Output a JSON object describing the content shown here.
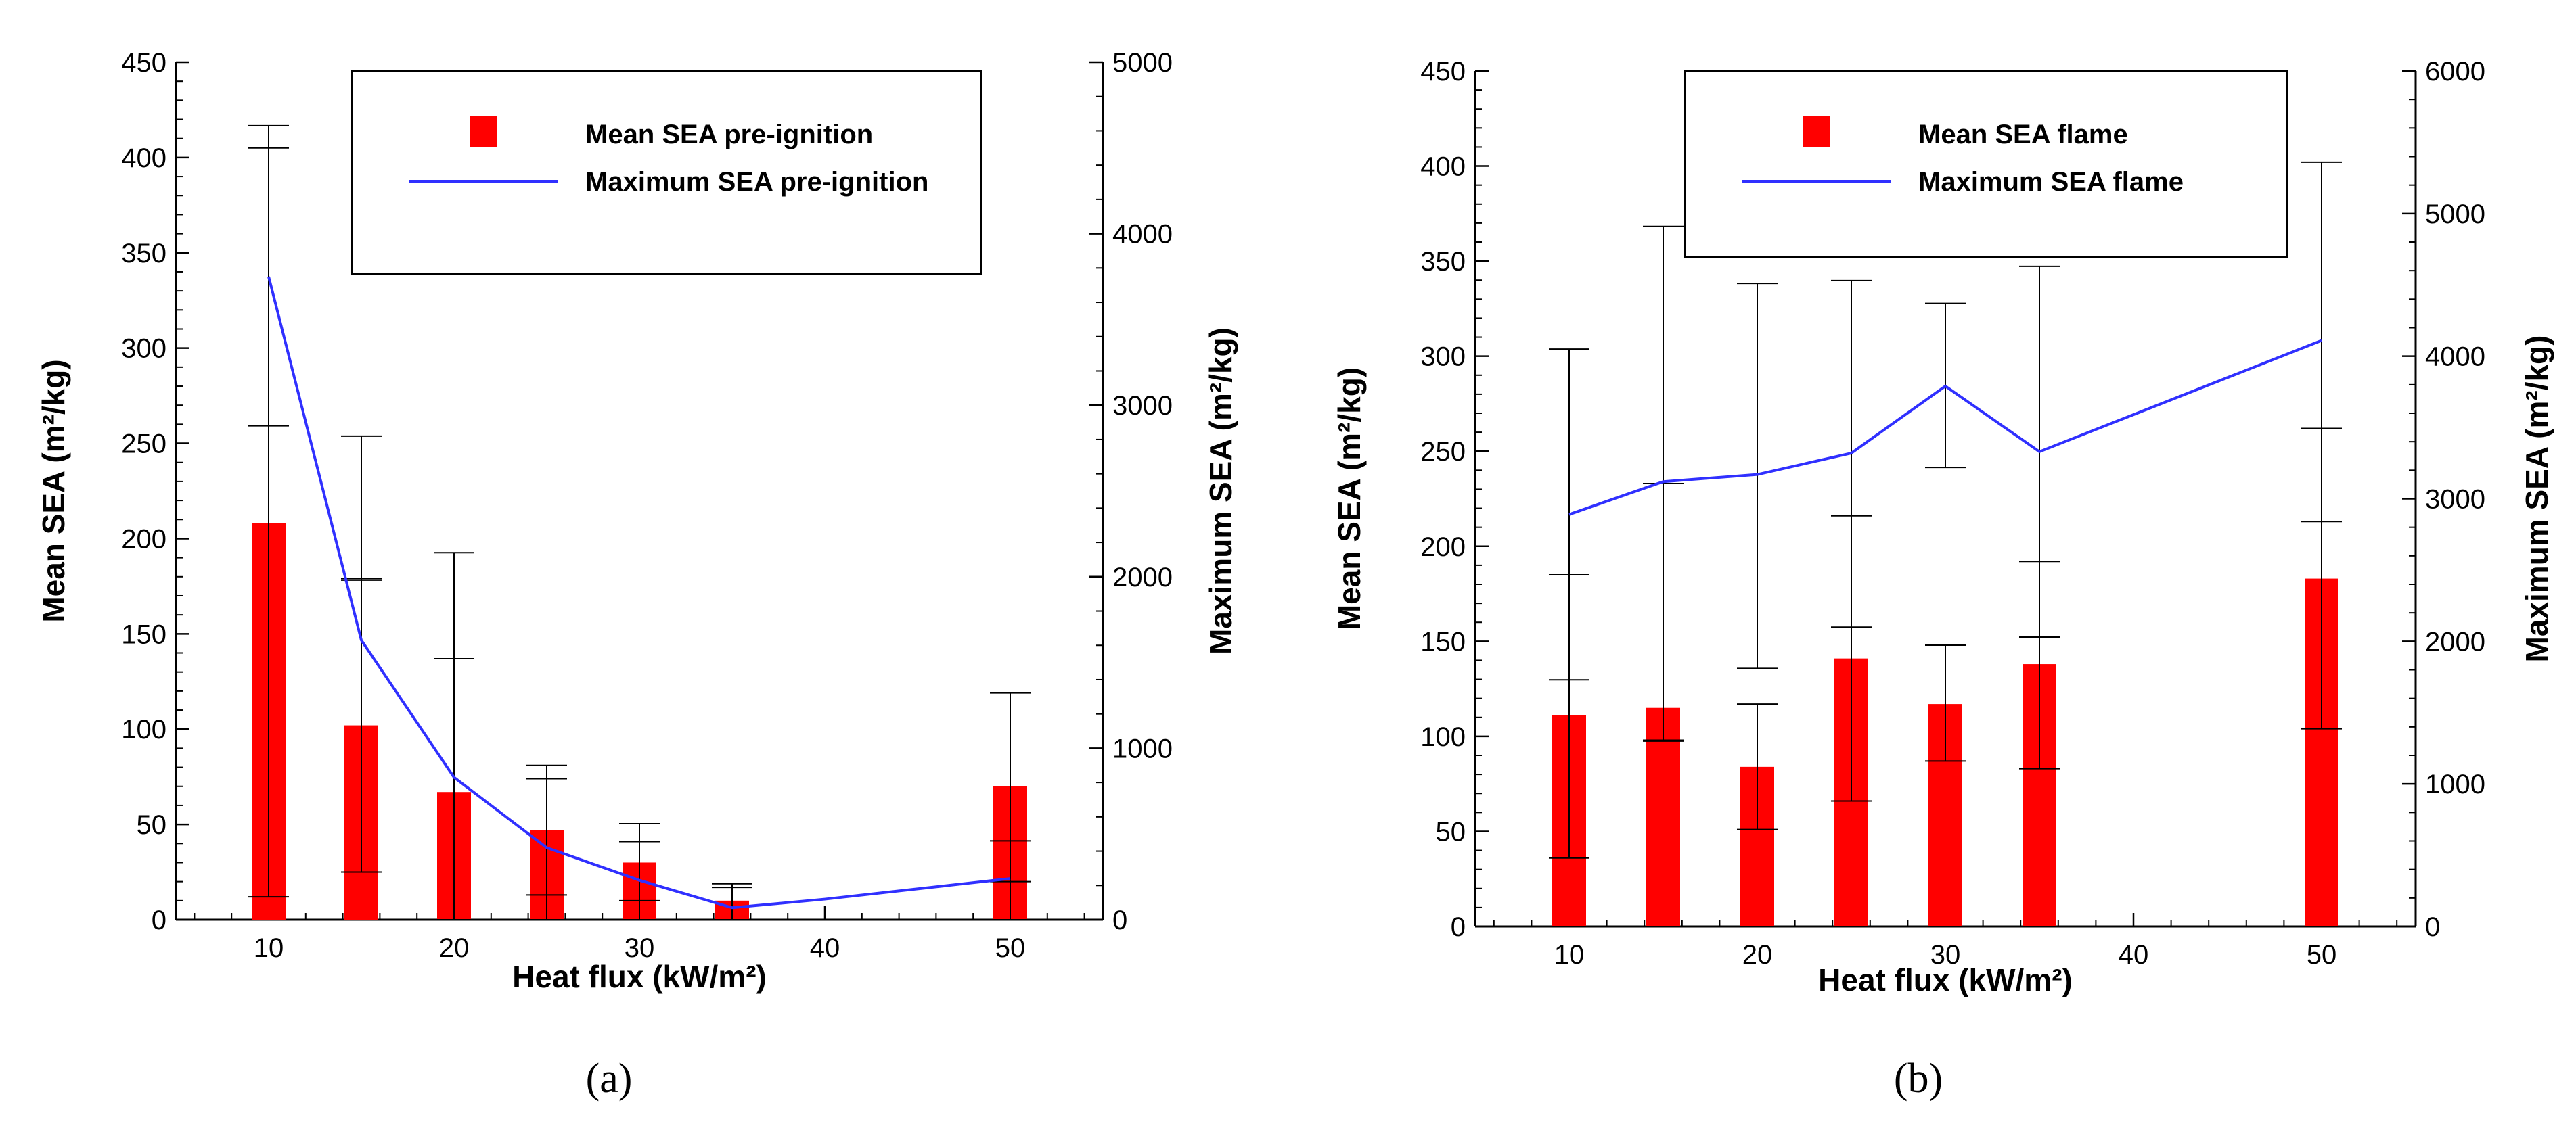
{
  "colors": {
    "bar": "#ff0000",
    "line": "#3030ff",
    "axis": "#000000"
  },
  "chart_data": [
    {
      "type": "bar",
      "panel_label": "(a)",
      "xlabel": "Heat flux (kW/m²)",
      "ylabel": "Mean SEA (m²/kg)",
      "y2label": "Maximum SEA (m²/kg)",
      "xlim": [
        5,
        55
      ],
      "ylim": [
        0,
        450
      ],
      "y2lim": [
        0,
        5000
      ],
      "xticks": [
        10,
        20,
        30,
        40,
        50
      ],
      "yticks": [
        0,
        50,
        100,
        150,
        200,
        250,
        300,
        350,
        400,
        450
      ],
      "y2ticks": [
        0,
        1000,
        2000,
        3000,
        4000,
        5000
      ],
      "legend": {
        "position": "top-right",
        "bar_label": "Mean SEA pre-ignition",
        "line_label": "Maximum SEA pre-ignition"
      },
      "bars": {
        "name": "Mean SEA pre-ignition",
        "x": [
          10,
          15,
          20,
          25,
          30,
          35,
          50
        ],
        "values": [
          208,
          102,
          67,
          47,
          30,
          10,
          70
        ],
        "error_low": [
          12,
          25,
          0,
          13,
          10,
          0,
          20
        ],
        "error_high": [
          405,
          179,
          137,
          74,
          41,
          17,
          119
        ]
      },
      "line": {
        "name": "Maximum SEA pre-ignition",
        "x": [
          10,
          15,
          20,
          25,
          30,
          35,
          40,
          50
        ],
        "values": [
          3750,
          1630,
          830,
          420,
          230,
          70,
          120,
          240
        ],
        "error_low": [
          2880,
          1980,
          0,
          0,
          0,
          0,
          null,
          0
        ],
        "error_high": [
          4630,
          2820,
          2140,
          900,
          560,
          210,
          null,
          460
        ]
      }
    },
    {
      "type": "bar",
      "panel_label": "(b)",
      "xlabel": "Heat flux (kW/m²)",
      "ylabel": "Mean SEA (m²/kg)",
      "y2label": "Maximum SEA (m²/kg)",
      "xlim": [
        5,
        55
      ],
      "ylim": [
        0,
        450
      ],
      "y2lim": [
        0,
        6000
      ],
      "xticks": [
        10,
        20,
        30,
        40,
        50
      ],
      "yticks": [
        0,
        50,
        100,
        150,
        200,
        250,
        300,
        350,
        400,
        450
      ],
      "y2ticks": [
        0,
        1000,
        2000,
        3000,
        4000,
        5000,
        6000
      ],
      "legend": {
        "position": "top-right",
        "bar_label": "Mean SEA flame",
        "line_label": "Maximum SEA flame"
      },
      "bars": {
        "name": "Mean SEA flame",
        "x": [
          10,
          15,
          20,
          25,
          30,
          35,
          50
        ],
        "values": [
          111,
          115,
          84,
          141,
          117,
          138,
          183
        ],
        "error_low": [
          36,
          98,
          51,
          66,
          87,
          83,
          104
        ],
        "error_high": [
          185,
          233,
          117,
          216,
          148,
          192,
          262
        ]
      },
      "line": {
        "name": "Maximum SEA flame",
        "x": [
          10,
          15,
          20,
          25,
          30,
          35,
          50
        ],
        "values": [
          2890,
          3120,
          3170,
          3320,
          3790,
          3330,
          4110
        ],
        "error_low": [
          1730,
          1300,
          1810,
          2100,
          3220,
          2030,
          2840
        ],
        "error_high": [
          4050,
          4910,
          4510,
          4530,
          4370,
          4630,
          5360
        ]
      }
    }
  ]
}
